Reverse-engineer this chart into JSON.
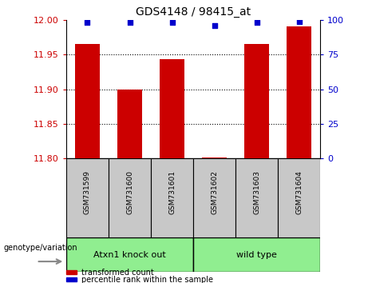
{
  "title": "GDS4148 / 98415_at",
  "samples": [
    "GSM731599",
    "GSM731600",
    "GSM731601",
    "GSM731602",
    "GSM731603",
    "GSM731604"
  ],
  "red_values": [
    11.965,
    11.9,
    11.943,
    11.802,
    11.965,
    11.99
  ],
  "blue_values": [
    98,
    98,
    98,
    96,
    98,
    99
  ],
  "ylim_left": [
    11.8,
    12.0
  ],
  "ylim_right": [
    0,
    100
  ],
  "yticks_left": [
    11.8,
    11.85,
    11.9,
    11.95,
    12.0
  ],
  "yticks_right": [
    0,
    25,
    50,
    75,
    100
  ],
  "bar_color": "#CC0000",
  "dot_color": "#0000CC",
  "bar_width": 0.6,
  "genotype_label": "genotype/variation",
  "legend_red": "transformed count",
  "legend_blue": "percentile rank within the sample",
  "tick_color_left": "#CC0000",
  "tick_color_right": "#0000CC",
  "bg_gray": "#C8C8C8",
  "bg_green": "#90EE90",
  "group1_label": "Atxn1 knock out",
  "group2_label": "wild type",
  "group1_indices": [
    0,
    1,
    2
  ],
  "group2_indices": [
    3,
    4,
    5
  ],
  "title_fontsize": 10,
  "tick_fontsize": 8,
  "label_fontsize": 8
}
